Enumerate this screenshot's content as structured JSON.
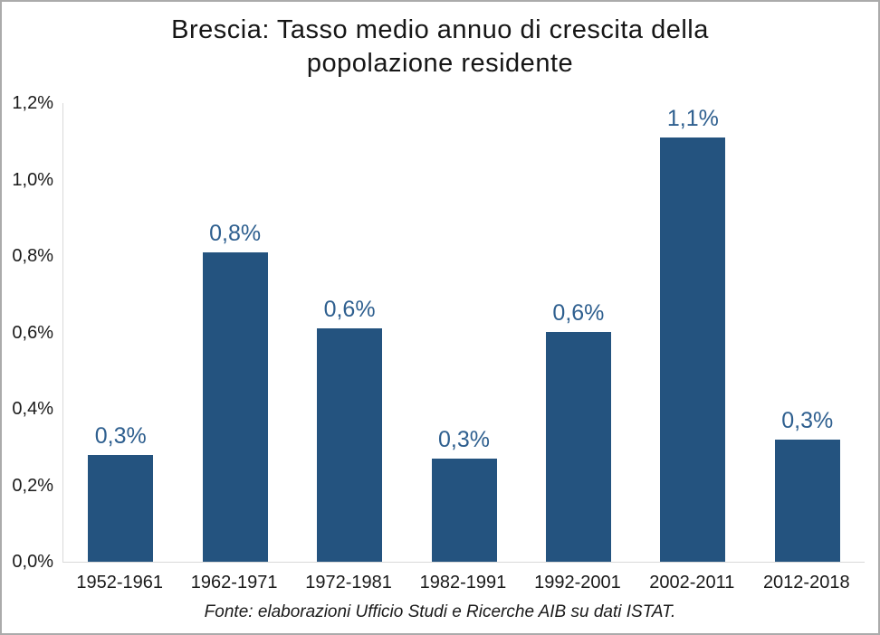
{
  "title": {
    "line1": "Brescia: Tasso medio annuo di crescita della",
    "line2": "popolazione residente"
  },
  "source_note": "Fonte: elaborazioni Ufficio Studi e Ricerche AIB su dati ISTAT.",
  "colors": {
    "bar_fill": "#24537F",
    "data_label": "#2E5F8F",
    "axis_line": "#D9D9D9",
    "text": "#1a1a1a",
    "frame_border": "#ABABAB"
  },
  "chart_data": {
    "type": "bar",
    "title": "Brescia: Tasso medio annuo di crescita della popolazione residente",
    "categories": [
      "1952-1961",
      "1962-1971",
      "1972-1981",
      "1982-1991",
      "1992-2001",
      "2002-2011",
      "2012-2018"
    ],
    "values": [
      0.28,
      0.81,
      0.61,
      0.27,
      0.6,
      1.11,
      0.32
    ],
    "data_labels": [
      "0,3%",
      "0,8%",
      "0,6%",
      "0,3%",
      "0,6%",
      "1,1%",
      "0,3%"
    ],
    "xlabel": "",
    "ylabel": "",
    "ylim": [
      0,
      1.2
    ],
    "ytick_values": [
      0.0,
      0.2,
      0.4,
      0.6,
      0.8,
      1.0,
      1.2
    ],
    "ytick_labels": [
      "0,0%",
      "0,2%",
      "0,4%",
      "0,6%",
      "0,8%",
      "1,0%",
      "1,2%"
    ],
    "grid": false,
    "legend": "none",
    "footnote": "Fonte: elaborazioni Ufficio Studi e Ricerche AIB su dati ISTAT."
  }
}
